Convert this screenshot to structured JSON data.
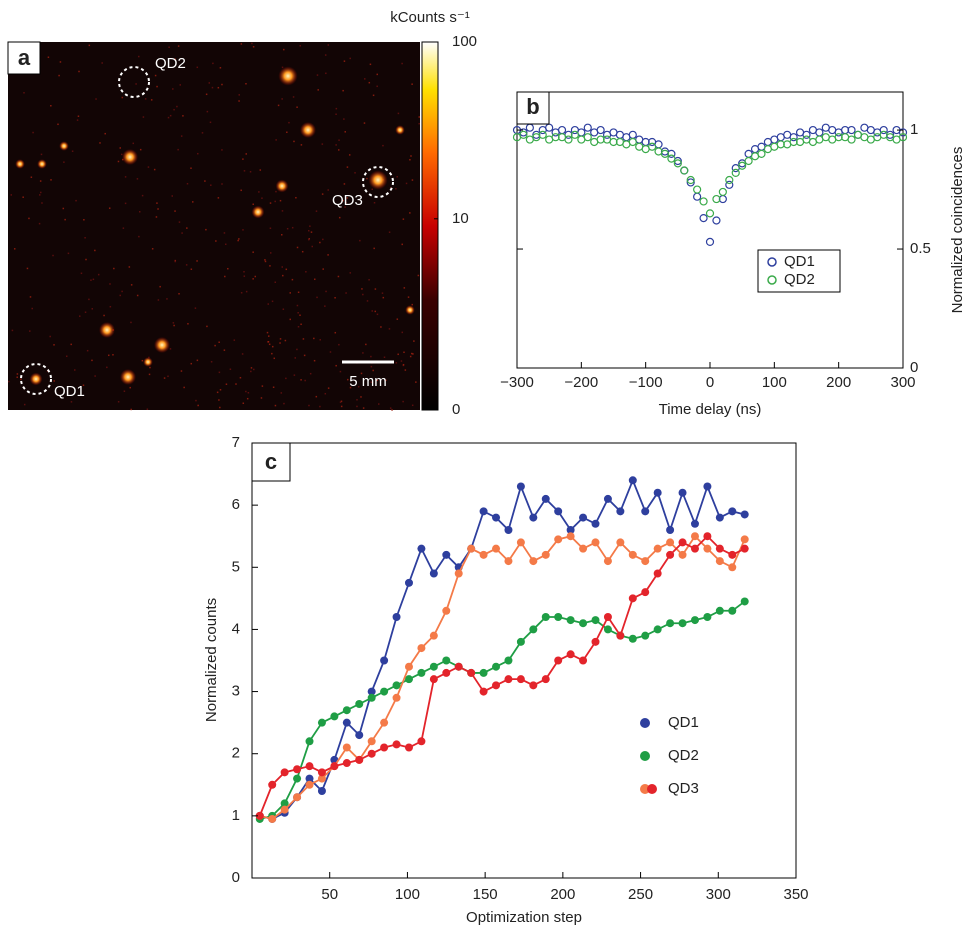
{
  "chart_data": [
    {
      "type": "heatmap",
      "label": "a",
      "annotations": [
        "QD1",
        "QD2",
        "QD3"
      ],
      "scalebar": "5 mm",
      "colorbar": {
        "label": "kCounts s⁻¹",
        "lim": [
          0,
          100
        ],
        "ticks": [
          0,
          10,
          100
        ],
        "scale": "symlog"
      }
    },
    {
      "type": "scatter",
      "label": "b",
      "xlabel": "Time delay (ns)",
      "ylabel": "Normalized coincidences",
      "x": [
        -300,
        -290,
        -280,
        -270,
        -260,
        -250,
        -240,
        -230,
        -220,
        -210,
        -200,
        -190,
        -180,
        -170,
        -160,
        -150,
        -140,
        -130,
        -120,
        -110,
        -100,
        -90,
        -80,
        -70,
        -60,
        -50,
        -40,
        -30,
        -20,
        -10,
        0,
        10,
        20,
        30,
        40,
        50,
        60,
        70,
        80,
        90,
        100,
        110,
        120,
        130,
        140,
        150,
        160,
        170,
        180,
        190,
        200,
        210,
        220,
        230,
        240,
        250,
        260,
        270,
        280,
        290,
        300
      ],
      "series": [
        {
          "name": "QD1",
          "color": "#2e3f9e",
          "values": [
            1.0,
            0.99,
            1.01,
            0.98,
            1.0,
            1.01,
            0.99,
            1.0,
            0.98,
            1.0,
            0.99,
            1.01,
            0.99,
            1.0,
            0.98,
            0.99,
            0.98,
            0.97,
            0.98,
            0.96,
            0.95,
            0.95,
            0.94,
            0.91,
            0.9,
            0.87,
            0.83,
            0.78,
            0.72,
            0.63,
            0.53,
            0.62,
            0.71,
            0.77,
            0.84,
            0.86,
            0.9,
            0.92,
            0.93,
            0.95,
            0.96,
            0.97,
            0.98,
            0.97,
            0.99,
            0.98,
            1.0,
            0.99,
            1.01,
            1.0,
            0.99,
            1.0,
            1.0,
            0.98,
            1.01,
            1.0,
            0.99,
            1.0,
            0.98,
            1.0,
            0.99
          ]
        },
        {
          "name": "QD2",
          "color": "#3aaa4a",
          "values": [
            0.97,
            0.98,
            0.96,
            0.97,
            0.98,
            0.96,
            0.97,
            0.97,
            0.96,
            0.98,
            0.96,
            0.97,
            0.95,
            0.96,
            0.96,
            0.95,
            0.95,
            0.94,
            0.95,
            0.93,
            0.92,
            0.93,
            0.91,
            0.9,
            0.88,
            0.86,
            0.83,
            0.79,
            0.75,
            0.7,
            0.65,
            0.71,
            0.74,
            0.79,
            0.82,
            0.85,
            0.87,
            0.89,
            0.9,
            0.92,
            0.93,
            0.94,
            0.94,
            0.95,
            0.95,
            0.96,
            0.95,
            0.96,
            0.97,
            0.96,
            0.97,
            0.97,
            0.96,
            0.98,
            0.97,
            0.96,
            0.97,
            0.98,
            0.97,
            0.96,
            0.97
          ]
        }
      ],
      "xlim": [
        -300,
        300
      ],
      "xticks": [
        {
          "value": -300,
          "label": "−300"
        },
        {
          "value": -200,
          "label": "−200"
        },
        {
          "value": -100,
          "label": "−100"
        },
        0,
        100,
        200,
        300
      ],
      "ylim": [
        0,
        1.16
      ],
      "yticks": [
        0,
        0.5,
        1
      ],
      "legend": "lower-right"
    },
    {
      "type": "line",
      "label": "c",
      "xlabel": "Optimization step",
      "ylabel": "Normalized counts",
      "x": [
        5,
        13,
        21,
        29,
        37,
        45,
        53,
        61,
        69,
        77,
        85,
        93,
        101,
        109,
        117,
        125,
        133,
        141,
        149,
        157,
        165,
        173,
        181,
        189,
        197,
        205,
        213,
        221,
        229,
        237,
        245,
        253,
        261,
        269,
        277,
        285,
        293,
        301,
        309,
        317
      ],
      "series": [
        {
          "name": "QD1",
          "color": "#2e3f9e",
          "values": [
            1.0,
            0.95,
            1.05,
            1.3,
            1.6,
            1.4,
            1.9,
            2.5,
            2.3,
            3.0,
            3.5,
            4.2,
            4.75,
            5.3,
            4.9,
            5.2,
            5.0,
            5.3,
            5.9,
            5.8,
            5.6,
            6.3,
            5.8,
            6.1,
            5.9,
            5.6,
            5.8,
            5.7,
            6.1,
            5.9,
            6.4,
            5.9,
            6.2,
            5.6,
            6.2,
            5.7,
            6.3,
            5.8,
            5.9,
            5.85
          ]
        },
        {
          "name": "QD2",
          "color": "#1f9e45",
          "values": [
            0.95,
            1.0,
            1.2,
            1.6,
            2.2,
            2.5,
            2.6,
            2.7,
            2.8,
            2.9,
            3.0,
            3.1,
            3.2,
            3.3,
            3.4,
            3.5,
            3.4,
            3.3,
            3.3,
            3.4,
            3.5,
            3.8,
            4.0,
            4.2,
            4.2,
            4.15,
            4.1,
            4.15,
            4.0,
            3.9,
            3.85,
            3.9,
            4.0,
            4.1,
            4.1,
            4.15,
            4.2,
            4.3,
            4.3,
            4.45
          ]
        },
        {
          "name": "QD3",
          "color": "#f47a48",
          "values": [
            1.0,
            0.95,
            1.1,
            1.3,
            1.5,
            1.6,
            1.8,
            2.1,
            1.9,
            2.2,
            2.5,
            2.9,
            3.4,
            3.7,
            3.9,
            4.3,
            4.9,
            5.3,
            5.2,
            5.3,
            5.1,
            5.4,
            5.1,
            5.2,
            5.45,
            5.5,
            5.3,
            5.4,
            5.1,
            5.4,
            5.2,
            5.1,
            5.3,
            5.4,
            5.2,
            5.5,
            5.3,
            5.1,
            5.0,
            5.45
          ]
        },
        {
          "color": "#e3242b",
          "values": [
            1.0,
            1.5,
            1.7,
            1.75,
            1.8,
            1.7,
            1.8,
            1.85,
            1.9,
            2.0,
            2.1,
            2.15,
            2.1,
            2.2,
            3.2,
            3.3,
            3.4,
            3.3,
            3.0,
            3.1,
            3.2,
            3.2,
            3.1,
            3.2,
            3.5,
            3.6,
            3.5,
            3.8,
            4.2,
            3.9,
            4.5,
            4.6,
            4.9,
            5.2,
            5.4,
            5.3,
            5.5,
            5.3,
            5.2,
            5.3
          ]
        }
      ],
      "xlim": [
        0,
        350
      ],
      "xticks": [
        50,
        100,
        150,
        200,
        250,
        300,
        350
      ],
      "ylim": [
        0,
        7
      ],
      "yticks": [
        0,
        1,
        2,
        3,
        4,
        5,
        6,
        7
      ],
      "legend": "lower-right"
    }
  ]
}
